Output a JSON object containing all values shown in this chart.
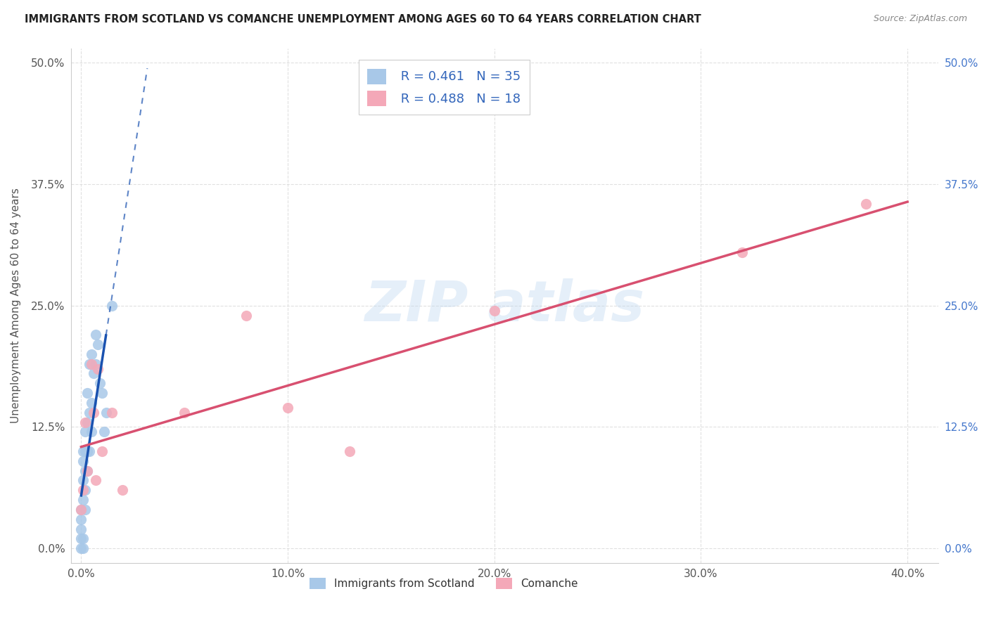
{
  "title": "IMMIGRANTS FROM SCOTLAND VS COMANCHE UNEMPLOYMENT AMONG AGES 60 TO 64 YEARS CORRELATION CHART",
  "source": "Source: ZipAtlas.com",
  "ylabel": "Unemployment Among Ages 60 to 64 years",
  "xlabel_ticks": [
    "0.0%",
    "10.0%",
    "20.0%",
    "30.0%",
    "40.0%"
  ],
  "xlabel_vals": [
    0.0,
    0.1,
    0.2,
    0.3,
    0.4
  ],
  "ylabel_ticks": [
    "0.0%",
    "12.5%",
    "25.0%",
    "37.5%",
    "50.0%"
  ],
  "ylabel_vals": [
    0.0,
    0.125,
    0.25,
    0.375,
    0.5
  ],
  "xlim": [
    -0.005,
    0.415
  ],
  "ylim": [
    -0.015,
    0.515
  ],
  "scotland_color": "#a8c8e8",
  "comanche_color": "#f4a8b8",
  "scotland_line_color": "#1a52b0",
  "comanche_line_color": "#d85070",
  "scotland_R": 0.461,
  "scotland_N": 35,
  "comanche_R": 0.488,
  "comanche_N": 18,
  "scotland_x": [
    0.0,
    0.0,
    0.0,
    0.0,
    0.0,
    0.001,
    0.001,
    0.001,
    0.001,
    0.001,
    0.001,
    0.002,
    0.002,
    0.002,
    0.002,
    0.002,
    0.003,
    0.003,
    0.003,
    0.003,
    0.004,
    0.004,
    0.004,
    0.005,
    0.005,
    0.005,
    0.006,
    0.007,
    0.007,
    0.008,
    0.009,
    0.01,
    0.011,
    0.012,
    0.015
  ],
  "scotland_y": [
    0.0,
    0.01,
    0.02,
    0.03,
    0.04,
    0.0,
    0.01,
    0.05,
    0.07,
    0.09,
    0.1,
    0.04,
    0.06,
    0.08,
    0.1,
    0.12,
    0.08,
    0.1,
    0.13,
    0.16,
    0.1,
    0.14,
    0.19,
    0.12,
    0.15,
    0.2,
    0.18,
    0.19,
    0.22,
    0.21,
    0.17,
    0.16,
    0.12,
    0.14,
    0.25
  ],
  "comanche_x": [
    0.0,
    0.001,
    0.002,
    0.003,
    0.005,
    0.006,
    0.007,
    0.008,
    0.01,
    0.015,
    0.02,
    0.05,
    0.08,
    0.1,
    0.13,
    0.2,
    0.32,
    0.38
  ],
  "comanche_y": [
    0.04,
    0.06,
    0.13,
    0.08,
    0.19,
    0.14,
    0.07,
    0.185,
    0.1,
    0.14,
    0.06,
    0.14,
    0.24,
    0.145,
    0.1,
    0.245,
    0.305,
    0.355
  ]
}
